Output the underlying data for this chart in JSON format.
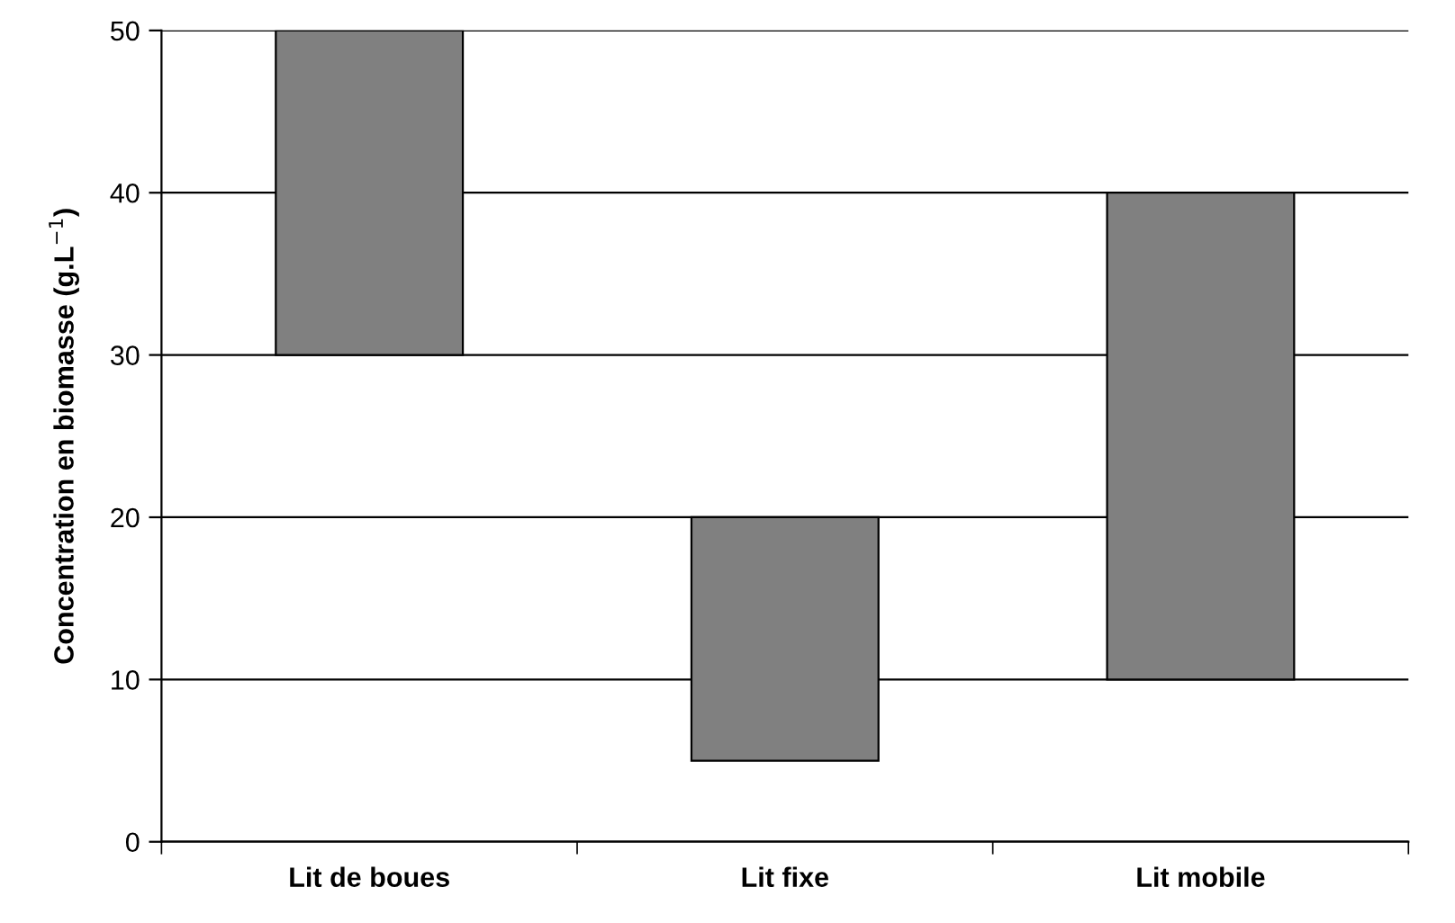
{
  "chart_data": {
    "type": "bar",
    "ylabel": "Concentration en biomasse (g.L$^{−1}$)",
    "categories": [
      "Lit de boues",
      "Lit fixe",
      "Lit mobile"
    ],
    "series": [
      {
        "color": "#808080",
        "values": [
          20,
          15,
          30
        ],
        "base": [
          30,
          5,
          10
        ]
      }
    ],
    "ylim": [
      0,
      50
    ],
    "yticks": [
      0,
      10,
      20,
      30,
      40,
      50
    ],
    "grid": "y",
    "legend": false
  }
}
